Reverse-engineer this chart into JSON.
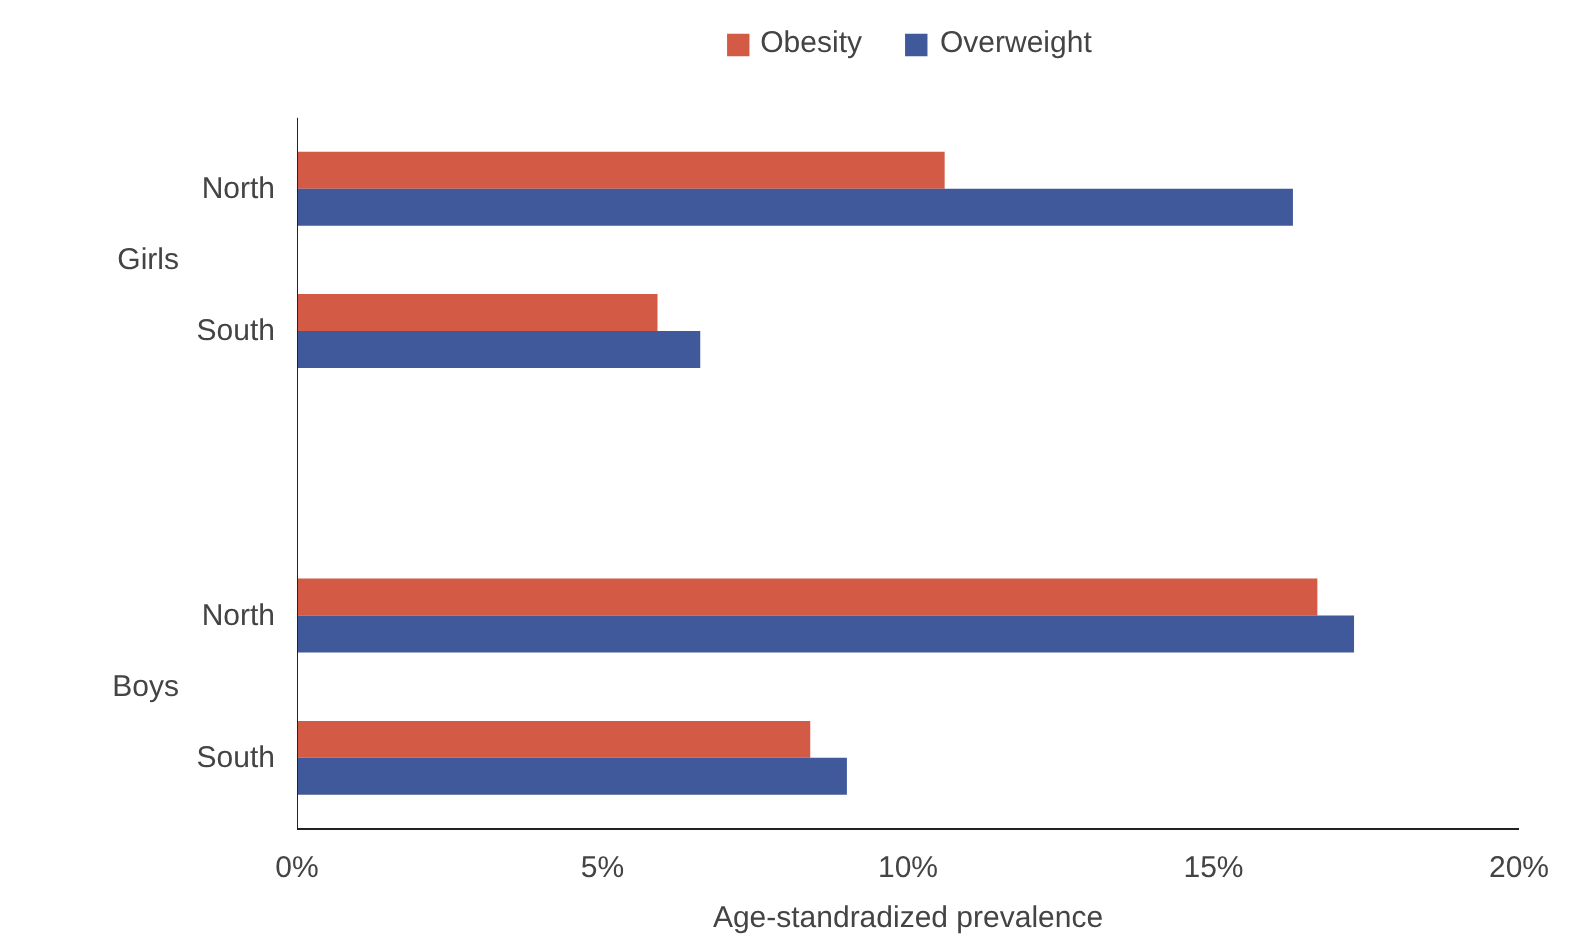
{
  "chart_data": {
    "type": "bar",
    "orientation": "horizontal",
    "xlabel": "Age-standradized prevalence",
    "categories": [
      "North",
      "South",
      null,
      "North",
      "South"
    ],
    "series": [
      {
        "name": "Obesity",
        "color": "#d35a45",
        "values": [
          10.6,
          5.9,
          null,
          16.7,
          8.4
        ]
      },
      {
        "name": "Overweight",
        "color": "#40599b",
        "values": [
          16.3,
          6.6,
          null,
          17.3,
          9.0
        ]
      }
    ],
    "annotations": [
      "Girls",
      "Boys"
    ],
    "xlim": [
      0,
      20
    ],
    "xticks": [
      {
        "value": 0,
        "label": "0%"
      },
      {
        "value": 5,
        "label": "5%"
      },
      {
        "value": 10,
        "label": "10%"
      },
      {
        "value": 15,
        "label": "15%"
      },
      {
        "value": 20,
        "label": "20%"
      }
    ],
    "legend": "top",
    "grid": false
  }
}
